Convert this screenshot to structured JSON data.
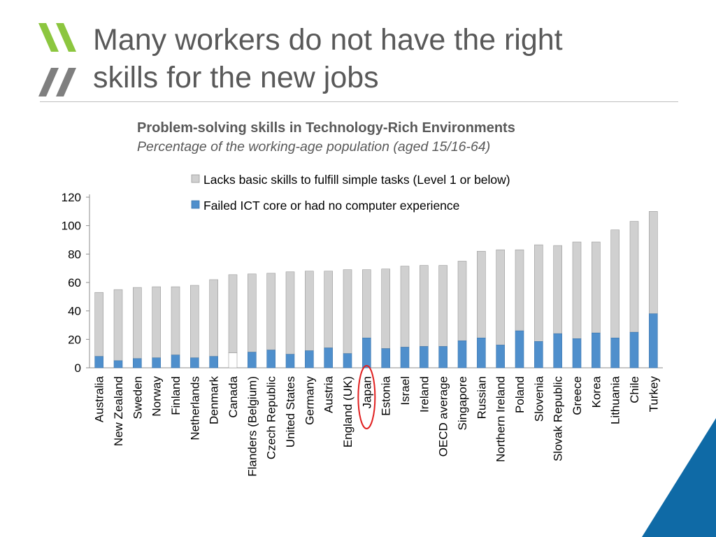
{
  "slide": {
    "title_line1": "Many workers do not have the right",
    "title_line2": "skills for the new jobs"
  },
  "colors": {
    "logo_green": "#8cc63f",
    "logo_grey": "#7f7f7f",
    "title_text": "#595959",
    "lacks_fill": "#d0d0d0",
    "failed_fill": "#4f8fcc",
    "highlight_circle": "#e02020",
    "corner_blue": "#0f6aa6"
  },
  "chart_data": {
    "type": "bar",
    "title": "Problem-solving skills in Technology-Rich Environments",
    "subtitle": "Percentage of the working-age population (aged 15/16-64)",
    "ylim": [
      0,
      120
    ],
    "yticks": [
      0,
      20,
      40,
      60,
      80,
      100,
      120
    ],
    "grid": false,
    "legend_position": "top",
    "highlighted_category": "Japan",
    "categories": [
      "Australia",
      "New Zealand",
      "Sweden",
      "Norway",
      "Finland",
      "Netherlands",
      "Denmark",
      "Canada",
      "Flanders (Belgium)",
      "Czech Republic",
      "United States",
      "Germany",
      "Austria",
      "England (UK)",
      "Japan",
      "Estonia",
      "Israel",
      "Ireland",
      "OECD average",
      "Singapore",
      "Russian",
      "Northern Ireland",
      "Poland",
      "Slovenia",
      "Slovak Republic",
      "Greece",
      "Korea",
      "Lithuania",
      "Chile",
      "Turkey"
    ],
    "series": [
      {
        "name": "Lacks basic skills to fulfill simple tasks (Level 1 or below)",
        "values": [
          45,
          50,
          50,
          50,
          48,
          51,
          54,
          55,
          55,
          54,
          58,
          56,
          54,
          59,
          48,
          56,
          57,
          57,
          57,
          56,
          61,
          67,
          57,
          68,
          62,
          68,
          64,
          76,
          78,
          72
        ]
      },
      {
        "name": "Failed ICT core or had no computer experience",
        "values": [
          8,
          5,
          6.5,
          7,
          9,
          7,
          8,
          10.5,
          11,
          12.5,
          9.5,
          12,
          14,
          10,
          21,
          13.5,
          14.5,
          15,
          15,
          19,
          21,
          16,
          26,
          18.5,
          24,
          20.5,
          24.5,
          21,
          25,
          38
        ]
      }
    ]
  }
}
